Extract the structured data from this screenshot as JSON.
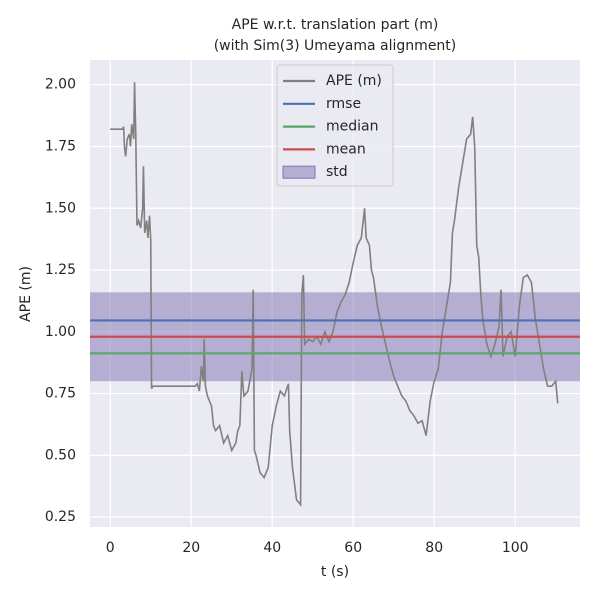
{
  "chart_data": {
    "type": "line",
    "title": [
      "APE w.r.t. translation part (m)",
      "(with Sim(3) Umeyama alignment)"
    ],
    "xlabel": "t (s)",
    "ylabel": "APE (m)",
    "xlim": [
      -5,
      116
    ],
    "ylim": [
      0.21,
      2.1
    ],
    "xticks": [
      0,
      20,
      40,
      60,
      80,
      100
    ],
    "yticks": [
      0.25,
      {
        "value": 0.5,
        "label": "0.50"
      },
      0.75,
      {
        "value": 1.0,
        "label": "1.00"
      },
      1.25,
      {
        "value": 1.5,
        "label": "1.50"
      },
      1.75,
      {
        "value": 2.0,
        "label": "2.00"
      }
    ],
    "grid": true,
    "legend": "upper center",
    "series": [
      {
        "name": "APE (m)",
        "color": "#808080",
        "x": [
          0,
          3,
          3.3,
          3.5,
          3.8,
          4.2,
          4.7,
          5,
          5.3,
          5.8,
          6,
          6.3,
          6.6,
          7,
          7.5,
          8,
          8.2,
          8.5,
          9,
          9.3,
          9.7,
          10,
          10.2,
          10.5,
          15,
          20,
          21,
          21.5,
          22,
          22.5,
          23,
          23.2,
          23.5,
          24,
          25,
          25.5,
          26,
          27,
          28,
          29,
          30,
          31,
          31.5,
          32,
          32.5,
          33,
          34,
          35,
          35.3,
          35.6,
          36,
          37,
          38,
          39,
          40,
          41,
          42,
          43,
          44,
          44.3,
          45,
          46,
          47,
          47.3,
          47.7,
          48,
          49,
          50,
          51,
          52,
          53,
          54,
          55,
          56,
          57,
          58,
          59,
          60,
          61,
          62,
          62.8,
          63.2,
          64,
          64.5,
          65,
          66,
          67,
          68,
          69,
          70,
          71,
          72,
          73,
          74,
          75,
          76,
          77,
          78,
          79,
          80,
          81,
          82,
          83,
          84,
          84.5,
          85,
          86,
          87,
          88,
          89,
          89.5,
          90,
          90.5,
          91,
          91.5,
          92,
          93,
          94,
          95,
          96,
          96.5,
          97,
          98,
          99,
          100,
          101,
          102,
          103,
          104,
          105,
          106,
          107,
          108,
          109,
          110,
          110.5
        ],
        "values": [
          1.82,
          1.82,
          1.83,
          1.75,
          1.71,
          1.78,
          1.8,
          1.75,
          1.84,
          1.78,
          2.01,
          1.8,
          1.43,
          1.45,
          1.42,
          1.5,
          1.67,
          1.4,
          1.45,
          1.38,
          1.47,
          1.37,
          0.77,
          0.78,
          0.78,
          0.78,
          0.78,
          0.79,
          0.76,
          0.86,
          0.8,
          0.97,
          0.78,
          0.74,
          0.7,
          0.62,
          0.6,
          0.62,
          0.55,
          0.58,
          0.52,
          0.55,
          0.6,
          0.62,
          0.84,
          0.74,
          0.76,
          0.85,
          1.17,
          0.52,
          0.5,
          0.43,
          0.41,
          0.45,
          0.62,
          0.7,
          0.76,
          0.74,
          0.79,
          0.6,
          0.45,
          0.32,
          0.3,
          1.15,
          1.23,
          0.95,
          0.97,
          0.96,
          0.98,
          0.95,
          1.0,
          0.96,
          1.0,
          1.08,
          1.12,
          1.15,
          1.2,
          1.28,
          1.35,
          1.38,
          1.5,
          1.38,
          1.35,
          1.25,
          1.22,
          1.1,
          1.02,
          0.95,
          0.88,
          0.82,
          0.78,
          0.74,
          0.72,
          0.68,
          0.66,
          0.63,
          0.64,
          0.58,
          0.72,
          0.8,
          0.85,
          1.0,
          1.1,
          1.2,
          1.4,
          1.45,
          1.58,
          1.68,
          1.78,
          1.8,
          1.87,
          1.75,
          1.35,
          1.3,
          1.15,
          1.05,
          0.95,
          0.9,
          0.95,
          1.02,
          1.17,
          0.9,
          0.98,
          1.0,
          0.9,
          1.1,
          1.22,
          1.23,
          1.2,
          1.05,
          0.95,
          0.85,
          0.78,
          0.78,
          0.8,
          0.71
        ]
      }
    ],
    "stats": [
      {
        "name": "rmse",
        "color": "#4c72b0",
        "value": 1.046
      },
      {
        "name": "median",
        "color": "#55a868",
        "value": 0.913
      },
      {
        "name": "mean",
        "color": "#c44e52",
        "value": 0.98
      }
    ],
    "std": {
      "name": "std",
      "color": "#8172b2",
      "value": 0.18
    }
  }
}
